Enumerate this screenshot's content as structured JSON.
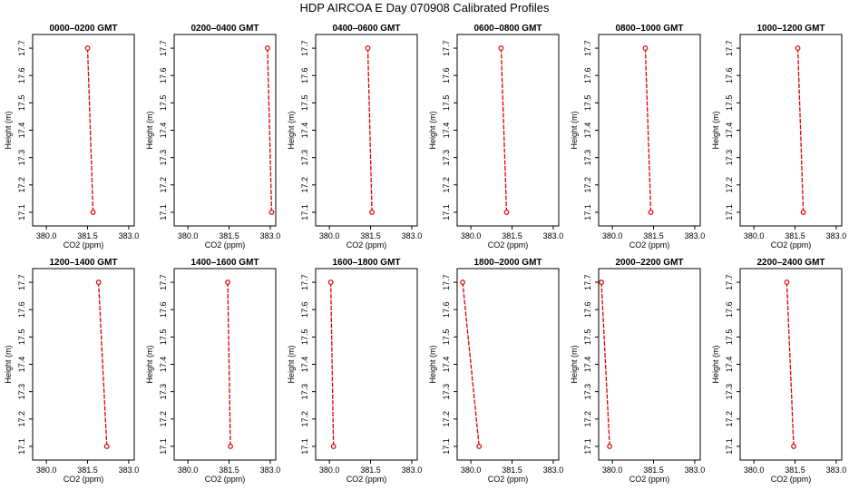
{
  "page": {
    "title": "HDP  AIRCOA E  Day 070908  Calibrated Profiles"
  },
  "colors": {
    "series": "#dd0000",
    "axis": "#000000"
  },
  "chart_data": [
    {
      "type": "line",
      "title": "0000–0200 GMT",
      "xlabel": "CO2 (ppm)",
      "ylabel": "Height (m)",
      "xlim": [
        379.5,
        383.2
      ],
      "ylim": [
        17.05,
        17.75
      ],
      "x_ticks": [
        "380.0",
        "381.5",
        "383.0"
      ],
      "x_tick_values": [
        380.0,
        381.5,
        383.0
      ],
      "y_ticks": [
        "17.1",
        "17.2",
        "17.3",
        "17.4",
        "17.5",
        "17.6",
        "17.7"
      ],
      "y_tick_values": [
        17.1,
        17.2,
        17.3,
        17.4,
        17.5,
        17.6,
        17.7
      ],
      "series": [
        {
          "points": [
            [
              381.5,
              17.7
            ],
            [
              381.7,
              17.1
            ]
          ]
        }
      ]
    },
    {
      "type": "line",
      "title": "0200–0400 GMT",
      "xlabel": "CO2 (ppm)",
      "ylabel": "Height (m)",
      "xlim": [
        379.5,
        383.2
      ],
      "ylim": [
        17.05,
        17.75
      ],
      "x_ticks": [
        "380.0",
        "381.5",
        "383.0"
      ],
      "x_tick_values": [
        380.0,
        381.5,
        383.0
      ],
      "y_ticks": [
        "17.1",
        "17.2",
        "17.3",
        "17.4",
        "17.5",
        "17.6",
        "17.7"
      ],
      "y_tick_values": [
        17.1,
        17.2,
        17.3,
        17.4,
        17.5,
        17.6,
        17.7
      ],
      "series": [
        {
          "points": [
            [
              382.9,
              17.7
            ],
            [
              383.05,
              17.1
            ]
          ]
        }
      ]
    },
    {
      "type": "line",
      "title": "0400–0600 GMT",
      "xlabel": "CO2 (ppm)",
      "ylabel": "Height (m)",
      "xlim": [
        379.5,
        383.2
      ],
      "ylim": [
        17.05,
        17.75
      ],
      "x_ticks": [
        "380.0",
        "381.5",
        "383.0"
      ],
      "x_tick_values": [
        380.0,
        381.5,
        383.0
      ],
      "y_ticks": [
        "17.1",
        "17.2",
        "17.3",
        "17.4",
        "17.5",
        "17.6",
        "17.7"
      ],
      "y_tick_values": [
        17.1,
        17.2,
        17.3,
        17.4,
        17.5,
        17.6,
        17.7
      ],
      "series": [
        {
          "points": [
            [
              381.4,
              17.7
            ],
            [
              381.55,
              17.1
            ]
          ]
        }
      ]
    },
    {
      "type": "line",
      "title": "0600–0800 GMT",
      "xlabel": "CO2 (ppm)",
      "ylabel": "Height (m)",
      "xlim": [
        379.5,
        383.2
      ],
      "ylim": [
        17.05,
        17.75
      ],
      "x_ticks": [
        "380.0",
        "381.5",
        "383.0"
      ],
      "x_tick_values": [
        380.0,
        381.5,
        383.0
      ],
      "y_ticks": [
        "17.1",
        "17.2",
        "17.3",
        "17.4",
        "17.5",
        "17.6",
        "17.7"
      ],
      "y_tick_values": [
        17.1,
        17.2,
        17.3,
        17.4,
        17.5,
        17.6,
        17.7
      ],
      "series": [
        {
          "points": [
            [
              381.1,
              17.7
            ],
            [
              381.3,
              17.1
            ]
          ]
        }
      ]
    },
    {
      "type": "line",
      "title": "0800–1000 GMT",
      "xlabel": "CO2 (ppm)",
      "ylabel": "Height (m)",
      "xlim": [
        379.5,
        383.2
      ],
      "ylim": [
        17.05,
        17.75
      ],
      "x_ticks": [
        "380.0",
        "381.5",
        "383.0"
      ],
      "x_tick_values": [
        380.0,
        381.5,
        383.0
      ],
      "y_ticks": [
        "17.1",
        "17.2",
        "17.3",
        "17.4",
        "17.5",
        "17.6",
        "17.7"
      ],
      "y_tick_values": [
        17.1,
        17.2,
        17.3,
        17.4,
        17.5,
        17.6,
        17.7
      ],
      "series": [
        {
          "points": [
            [
              381.2,
              17.7
            ],
            [
              381.4,
              17.1
            ]
          ]
        }
      ]
    },
    {
      "type": "line",
      "title": "1000–1200 GMT",
      "xlabel": "CO2 (ppm)",
      "ylabel": "Height (m)",
      "xlim": [
        379.5,
        383.2
      ],
      "ylim": [
        17.05,
        17.75
      ],
      "x_ticks": [
        "380.0",
        "381.5",
        "383.0"
      ],
      "x_tick_values": [
        380.0,
        381.5,
        383.0
      ],
      "y_ticks": [
        "17.1",
        "17.2",
        "17.3",
        "17.4",
        "17.5",
        "17.6",
        "17.7"
      ],
      "y_tick_values": [
        17.1,
        17.2,
        17.3,
        17.4,
        17.5,
        17.6,
        17.7
      ],
      "series": [
        {
          "points": [
            [
              381.6,
              17.7
            ],
            [
              381.8,
              17.1
            ]
          ]
        }
      ]
    },
    {
      "type": "line",
      "title": "1200–1400 GMT",
      "xlabel": "CO2 (ppm)",
      "ylabel": "Height (m)",
      "xlim": [
        379.5,
        383.2
      ],
      "ylim": [
        17.05,
        17.75
      ],
      "x_ticks": [
        "380.0",
        "381.5",
        "383.0"
      ],
      "x_tick_values": [
        380.0,
        381.5,
        383.0
      ],
      "y_ticks": [
        "17.1",
        "17.2",
        "17.3",
        "17.4",
        "17.5",
        "17.6",
        "17.7"
      ],
      "y_tick_values": [
        17.1,
        17.2,
        17.3,
        17.4,
        17.5,
        17.6,
        17.7
      ],
      "series": [
        {
          "points": [
            [
              381.9,
              17.7
            ],
            [
              382.2,
              17.1
            ]
          ]
        }
      ]
    },
    {
      "type": "line",
      "title": "1400–1600 GMT",
      "xlabel": "CO2 (ppm)",
      "ylabel": "Height (m)",
      "xlim": [
        379.5,
        383.2
      ],
      "ylim": [
        17.05,
        17.75
      ],
      "x_ticks": [
        "380.0",
        "381.5",
        "383.0"
      ],
      "x_tick_values": [
        380.0,
        381.5,
        383.0
      ],
      "y_ticks": [
        "17.1",
        "17.2",
        "17.3",
        "17.4",
        "17.5",
        "17.6",
        "17.7"
      ],
      "y_tick_values": [
        17.1,
        17.2,
        17.3,
        17.4,
        17.5,
        17.6,
        17.7
      ],
      "series": [
        {
          "points": [
            [
              381.45,
              17.7
            ],
            [
              381.55,
              17.1
            ]
          ]
        }
      ]
    },
    {
      "type": "line",
      "title": "1600–1800 GMT",
      "xlabel": "CO2 (ppm)",
      "ylabel": "Height (m)",
      "xlim": [
        379.5,
        383.2
      ],
      "ylim": [
        17.05,
        17.75
      ],
      "x_ticks": [
        "380.0",
        "381.5",
        "383.0"
      ],
      "x_tick_values": [
        380.0,
        381.5,
        383.0
      ],
      "y_ticks": [
        "17.1",
        "17.2",
        "17.3",
        "17.4",
        "17.5",
        "17.6",
        "17.7"
      ],
      "y_tick_values": [
        17.1,
        17.2,
        17.3,
        17.4,
        17.5,
        17.6,
        17.7
      ],
      "series": [
        {
          "points": [
            [
              380.05,
              17.7
            ],
            [
              380.15,
              17.1
            ]
          ]
        }
      ]
    },
    {
      "type": "line",
      "title": "1800–2000 GMT",
      "xlabel": "CO2 (ppm)",
      "ylabel": "Height (m)",
      "xlim": [
        379.5,
        383.2
      ],
      "ylim": [
        17.05,
        17.75
      ],
      "x_ticks": [
        "380.0",
        "381.5",
        "383.0"
      ],
      "x_tick_values": [
        380.0,
        381.5,
        383.0
      ],
      "y_ticks": [
        "17.1",
        "17.2",
        "17.3",
        "17.4",
        "17.5",
        "17.6",
        "17.7"
      ],
      "y_tick_values": [
        17.1,
        17.2,
        17.3,
        17.4,
        17.5,
        17.6,
        17.7
      ],
      "series": [
        {
          "points": [
            [
              379.7,
              17.7
            ],
            [
              380.3,
              17.1
            ]
          ]
        }
      ]
    },
    {
      "type": "line",
      "title": "2000–2200 GMT",
      "xlabel": "CO2 (ppm)",
      "ylabel": "Height (m)",
      "xlim": [
        379.5,
        383.2
      ],
      "ylim": [
        17.05,
        17.75
      ],
      "x_ticks": [
        "380.0",
        "381.5",
        "383.0"
      ],
      "x_tick_values": [
        380.0,
        381.5,
        383.0
      ],
      "y_ticks": [
        "17.1",
        "17.2",
        "17.3",
        "17.4",
        "17.5",
        "17.6",
        "17.7"
      ],
      "y_tick_values": [
        17.1,
        17.2,
        17.3,
        17.4,
        17.5,
        17.6,
        17.7
      ],
      "series": [
        {
          "points": [
            [
              379.6,
              17.7
            ],
            [
              379.9,
              17.1
            ]
          ]
        }
      ]
    },
    {
      "type": "line",
      "title": "2200–2400 GMT",
      "xlabel": "CO2 (ppm)",
      "ylabel": "Height (m)",
      "xlim": [
        379.5,
        383.2
      ],
      "ylim": [
        17.05,
        17.75
      ],
      "x_ticks": [
        "380.0",
        "381.5",
        "383.0"
      ],
      "x_tick_values": [
        380.0,
        381.5,
        383.0
      ],
      "y_ticks": [
        "17.1",
        "17.2",
        "17.3",
        "17.4",
        "17.5",
        "17.6",
        "17.7"
      ],
      "y_tick_values": [
        17.1,
        17.2,
        17.3,
        17.4,
        17.5,
        17.6,
        17.7
      ],
      "series": [
        {
          "points": [
            [
              381.2,
              17.7
            ],
            [
              381.45,
              17.1
            ]
          ]
        }
      ]
    }
  ]
}
